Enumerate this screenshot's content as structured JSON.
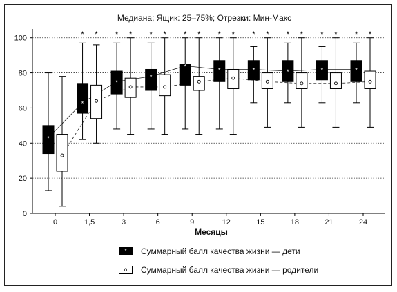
{
  "chart_data": {
    "type": "boxplot",
    "title": "Медиана; Ящик: 25–75%; Отрезки: Мин-Макс",
    "xlabel": "Месяцы",
    "ylabel": "",
    "ylim": [
      0,
      105
    ],
    "yticks": [
      0,
      20,
      40,
      60,
      80,
      100
    ],
    "grid": "dotted horizontal",
    "categories": [
      "0",
      "1,5",
      "3",
      "6",
      "9",
      "12",
      "15",
      "18",
      "21",
      "24"
    ],
    "series": [
      {
        "name": "Суммарный балл качества жизни — дети",
        "style": "filled",
        "median": [
          43,
          63,
          75,
          78,
          84,
          82,
          82,
          81,
          82,
          82
        ],
        "q1": [
          34,
          57,
          68,
          70,
          73,
          75,
          76,
          75,
          76,
          75
        ],
        "q3": [
          50,
          74,
          81,
          82,
          85,
          87,
          87,
          87,
          87,
          87
        ],
        "min": [
          13,
          42,
          48,
          48,
          48,
          48,
          63,
          63,
          63,
          63
        ],
        "max": [
          80,
          97,
          97,
          97,
          100,
          100,
          95,
          97,
          95,
          97
        ],
        "outliers_above": [
          false,
          true,
          true,
          true,
          true,
          true,
          true,
          true,
          true,
          true
        ]
      },
      {
        "name": "Суммарный балл качества жизни — родители",
        "style": "open",
        "median": [
          33,
          64,
          72,
          72,
          75,
          77,
          75,
          74,
          74,
          75
        ],
        "q1": [
          24,
          54,
          66,
          67,
          70,
          71,
          71,
          71,
          71,
          71
        ],
        "q3": [
          45,
          73,
          77,
          79,
          78,
          82,
          80,
          80,
          80,
          81
        ],
        "min": [
          4,
          40,
          45,
          45,
          45,
          45,
          49,
          49,
          49,
          49
        ],
        "max": [
          78,
          96,
          100,
          100,
          100,
          100,
          100,
          100,
          100,
          100
        ],
        "outliers_above": [
          false,
          true,
          true,
          true,
          true,
          true,
          true,
          true,
          true,
          true
        ]
      }
    ],
    "outlier_marker": "*",
    "legend": "bottom"
  },
  "legend": {
    "children_label": "Суммарный балл качества жизни — дети",
    "parents_label": "Суммарный балл качества жизни — родители"
  }
}
